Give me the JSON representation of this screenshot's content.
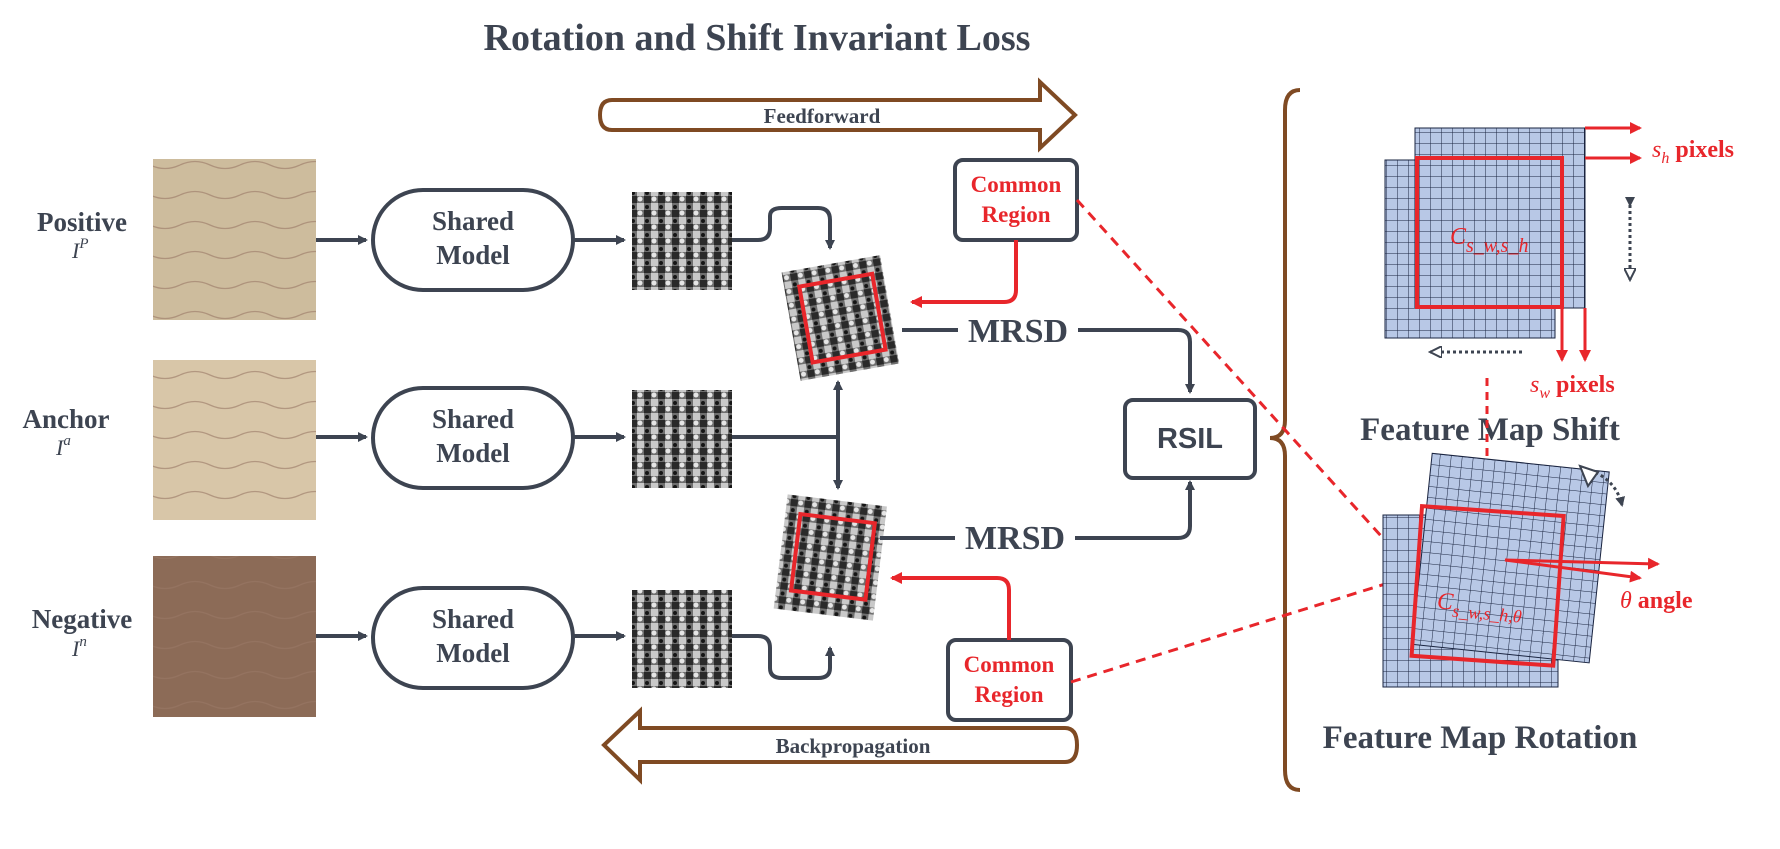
{
  "title": "Rotation and Shift Invariant Loss",
  "inputs": [
    {
      "label": "Positive",
      "symbol": "I",
      "sup": "P",
      "skin": "#cdbc9d"
    },
    {
      "label": "Anchor",
      "symbol": "I",
      "sup": "a",
      "skin": "#d8c6a8"
    },
    {
      "label": "Negative",
      "symbol": "I",
      "sup": "n",
      "skin": "#8c6b57"
    }
  ],
  "shared_model": {
    "line1": "Shared",
    "line2": "Model"
  },
  "common_region": {
    "line1": "Common",
    "line2": "Region"
  },
  "mrsd_label": "MRSD",
  "rsil_label": "RSIL",
  "feedforward_label": "Feedforward",
  "backprop_label": "Backpropagation",
  "shift_panel": {
    "title": "Feature Map Shift",
    "sh_label": "pixels",
    "sh_symbol": "s",
    "sh_sub": "h",
    "sw_label": "pixels",
    "sw_symbol": "s",
    "sw_sub": "w",
    "crop_symbol": "C",
    "crop_sub": "s_w,s_h"
  },
  "rotation_panel": {
    "title": "Feature Map Rotation",
    "theta_symbol": "θ",
    "theta_label": "angle",
    "crop_symbol": "C",
    "crop_sub": "s_w,s_h,θ"
  },
  "colors": {
    "dark": "#3d4451",
    "red": "#e8262b",
    "brown": "#7f4a23",
    "grid_fill": "#b8c8e6",
    "grid_line": "#1a2440"
  }
}
